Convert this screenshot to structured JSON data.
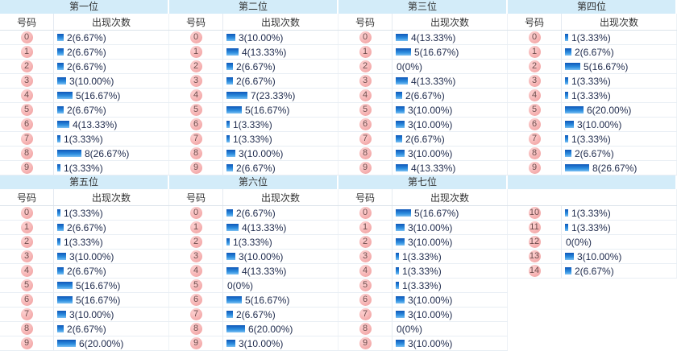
{
  "ui": {
    "number_header": "号码",
    "count_header": "出现次数"
  },
  "colors": {
    "band_background": "#d3ecf9",
    "bar_blue_dark": "#0e57b8",
    "bar_blue_light": "#7cc0f2",
    "badge_pink": "#f09c9c",
    "count_text": "#1f2b4d",
    "row_border": "#e8eef4"
  },
  "chart_data": [
    {
      "type": "bar",
      "orientation": "horizontal",
      "title": "第一位",
      "show_column_headers": true,
      "categories": [
        "0",
        "1",
        "2",
        "3",
        "4",
        "5",
        "6",
        "7",
        "8",
        "9"
      ],
      "values": [
        2,
        2,
        2,
        3,
        5,
        2,
        4,
        1,
        8,
        1
      ],
      "value_labels": [
        "2(6.67%)",
        "2(6.67%)",
        "2(6.67%)",
        "3(10.00%)",
        "5(16.67%)",
        "2(6.67%)",
        "4(13.33%)",
        "1(3.33%)",
        "8(26.67%)",
        "1(3.33%)"
      ]
    },
    {
      "type": "bar",
      "orientation": "horizontal",
      "title": "第二位",
      "show_column_headers": true,
      "categories": [
        "0",
        "1",
        "2",
        "3",
        "4",
        "5",
        "6",
        "7",
        "8",
        "9"
      ],
      "values": [
        3,
        4,
        2,
        2,
        7,
        5,
        1,
        1,
        3,
        2
      ],
      "value_labels": [
        "3(10.00%)",
        "4(13.33%)",
        "2(6.67%)",
        "2(6.67%)",
        "7(23.33%)",
        "5(16.67%)",
        "1(3.33%)",
        "1(3.33%)",
        "3(10.00%)",
        "2(6.67%)"
      ]
    },
    {
      "type": "bar",
      "orientation": "horizontal",
      "title": "第三位",
      "show_column_headers": true,
      "categories": [
        "0",
        "1",
        "2",
        "3",
        "4",
        "5",
        "6",
        "7",
        "8",
        "9"
      ],
      "values": [
        4,
        5,
        0,
        4,
        2,
        3,
        3,
        2,
        3,
        4
      ],
      "value_labels": [
        "4(13.33%)",
        "5(16.67%)",
        "0(0%)",
        "4(13.33%)",
        "2(6.67%)",
        "3(10.00%)",
        "3(10.00%)",
        "2(6.67%)",
        "3(10.00%)",
        "4(13.33%)"
      ]
    },
    {
      "type": "bar",
      "orientation": "horizontal",
      "title": "第四位",
      "show_column_headers": true,
      "categories": [
        "0",
        "1",
        "2",
        "3",
        "4",
        "5",
        "6",
        "7",
        "8",
        "9"
      ],
      "values": [
        1,
        2,
        5,
        1,
        1,
        6,
        3,
        1,
        2,
        8
      ],
      "value_labels": [
        "1(3.33%)",
        "2(6.67%)",
        "5(16.67%)",
        "1(3.33%)",
        "1(3.33%)",
        "6(20.00%)",
        "3(10.00%)",
        "1(3.33%)",
        "2(6.67%)",
        "8(26.67%)"
      ]
    },
    {
      "type": "bar",
      "orientation": "horizontal",
      "title": "第五位",
      "show_column_headers": true,
      "categories": [
        "0",
        "1",
        "2",
        "3",
        "4",
        "5",
        "6",
        "7",
        "8",
        "9"
      ],
      "values": [
        1,
        2,
        1,
        3,
        2,
        5,
        5,
        3,
        2,
        6
      ],
      "value_labels": [
        "1(3.33%)",
        "2(6.67%)",
        "1(3.33%)",
        "3(10.00%)",
        "2(6.67%)",
        "5(16.67%)",
        "5(16.67%)",
        "3(10.00%)",
        "2(6.67%)",
        "6(20.00%)"
      ]
    },
    {
      "type": "bar",
      "orientation": "horizontal",
      "title": "第六位",
      "show_column_headers": true,
      "categories": [
        "0",
        "1",
        "2",
        "3",
        "4",
        "5",
        "6",
        "7",
        "8",
        "9"
      ],
      "values": [
        2,
        4,
        1,
        3,
        4,
        0,
        5,
        2,
        6,
        3
      ],
      "value_labels": [
        "2(6.67%)",
        "4(13.33%)",
        "1(3.33%)",
        "3(10.00%)",
        "4(13.33%)",
        "0(0%)",
        "5(16.67%)",
        "2(6.67%)",
        "6(20.00%)",
        "3(10.00%)"
      ]
    },
    {
      "type": "bar",
      "orientation": "horizontal",
      "title": "第七位",
      "show_column_headers": true,
      "categories": [
        "0",
        "1",
        "2",
        "3",
        "4",
        "5",
        "6",
        "7",
        "8",
        "9"
      ],
      "values": [
        5,
        3,
        3,
        1,
        1,
        1,
        3,
        3,
        0,
        3
      ],
      "value_labels": [
        "5(16.67%)",
        "3(10.00%)",
        "3(10.00%)",
        "1(3.33%)",
        "1(3.33%)",
        "1(3.33%)",
        "3(10.00%)",
        "3(10.00%)",
        "0(0%)",
        "3(10.00%)"
      ]
    },
    {
      "type": "bar",
      "orientation": "horizontal",
      "title": "",
      "show_column_headers": false,
      "categories": [
        "10",
        "11",
        "12",
        "13",
        "14"
      ],
      "values": [
        1,
        1,
        0,
        3,
        2
      ],
      "value_labels": [
        "1(3.33%)",
        "1(3.33%)",
        "0(0%)",
        "3(10.00%)",
        "2(6.67%)"
      ]
    }
  ]
}
